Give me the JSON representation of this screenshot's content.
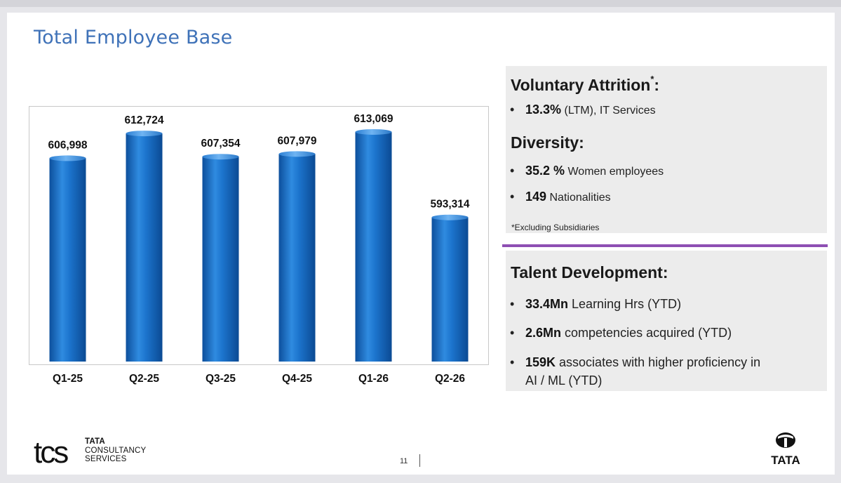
{
  "slide": {
    "title": "Total Employee Base",
    "page_number": "11"
  },
  "chart_data": {
    "type": "bar",
    "title": "Total Employee Base",
    "categories": [
      "Q1-25",
      "Q2-25",
      "Q3-25",
      "Q4-25",
      "Q1-26",
      "Q2-26"
    ],
    "values": [
      606998,
      612724,
      607354,
      607979,
      613069,
      593314
    ],
    "value_labels": [
      "606,998",
      "612,724",
      "607,354",
      "607,979",
      "613,069",
      "593,314"
    ],
    "xlabel": "",
    "ylabel": "",
    "ylim": [
      560000,
      615500
    ],
    "grid": false,
    "bar_color": "#1b6fc5"
  },
  "attrition": {
    "heading": "Voluntary Attrition",
    "heading_mark": "*",
    "heading_suffix": ":",
    "items": [
      {
        "bullet": "•",
        "strong": "13.3%",
        "small": " (LTM)",
        "rest": ", IT Services"
      }
    ]
  },
  "diversity": {
    "heading": "Diversity:",
    "items": [
      {
        "bullet": "•",
        "strong": "35.2 %",
        "rest": " Women employees"
      },
      {
        "bullet": "•",
        "strong": "149",
        "rest": " Nationalities"
      }
    ],
    "footnote": "*Excluding Subsidiaries"
  },
  "talent": {
    "heading": "Talent Development:",
    "items": [
      {
        "bullet": "•",
        "strong": "33.4Mn",
        "rest": " Learning Hrs (YTD)"
      },
      {
        "bullet": "•",
        "strong": "2.6Mn",
        "rest": " competencies acquired (YTD)"
      },
      {
        "bullet": "•",
        "strong": "159K",
        "rest": " associates with higher proficiency in",
        "rest2": "AI / ML (YTD)"
      }
    ]
  },
  "brand": {
    "tcs_mark": "tcs",
    "tcs_line1": "TATA",
    "tcs_line2": "CONSULTANCY",
    "tcs_line3": "SERVICES",
    "tata_wordmark": "TATA",
    "purple": "#8e4fb3",
    "title_blue": "#3f72b8"
  }
}
